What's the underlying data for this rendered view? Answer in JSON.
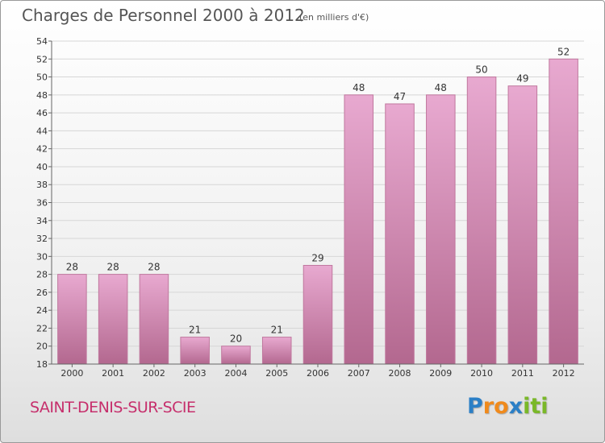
{
  "header": {
    "title": "Charges de Personnel 2000 à 2012",
    "subtitle": "(en milliers d'€)"
  },
  "footer": {
    "town": "SAINT-DENIS-SUR-SCIE"
  },
  "logo": {
    "text": "Proxiti",
    "letters": [
      "P",
      "r",
      "o",
      "x",
      "i",
      "t",
      "i"
    ],
    "colors": [
      "#2b7fc6",
      "#f08a1c",
      "#f08a1c",
      "#2b7fc6",
      "#7ab828",
      "#7ab828",
      "#7ab828"
    ]
  },
  "colors": {
    "bar_top": "#e8a9d0",
    "bar_bottom": "#b3688f",
    "bar_stroke": "#c0789e",
    "axis": "#666666",
    "grid": "#d6d6d6"
  },
  "chart_data": {
    "type": "bar",
    "title": "Charges de Personnel 2000 à 2012",
    "subtitle": "(en milliers d'€)",
    "categories": [
      "2000",
      "2001",
      "2002",
      "2003",
      "2004",
      "2005",
      "2006",
      "2007",
      "2008",
      "2009",
      "2010",
      "2011",
      "2012"
    ],
    "values": [
      28,
      28,
      28,
      21,
      20,
      21,
      29,
      48,
      47,
      48,
      50,
      49,
      52
    ],
    "ylim": [
      18,
      54
    ],
    "ytick_step": 2,
    "grid": true,
    "data_labels": true
  }
}
